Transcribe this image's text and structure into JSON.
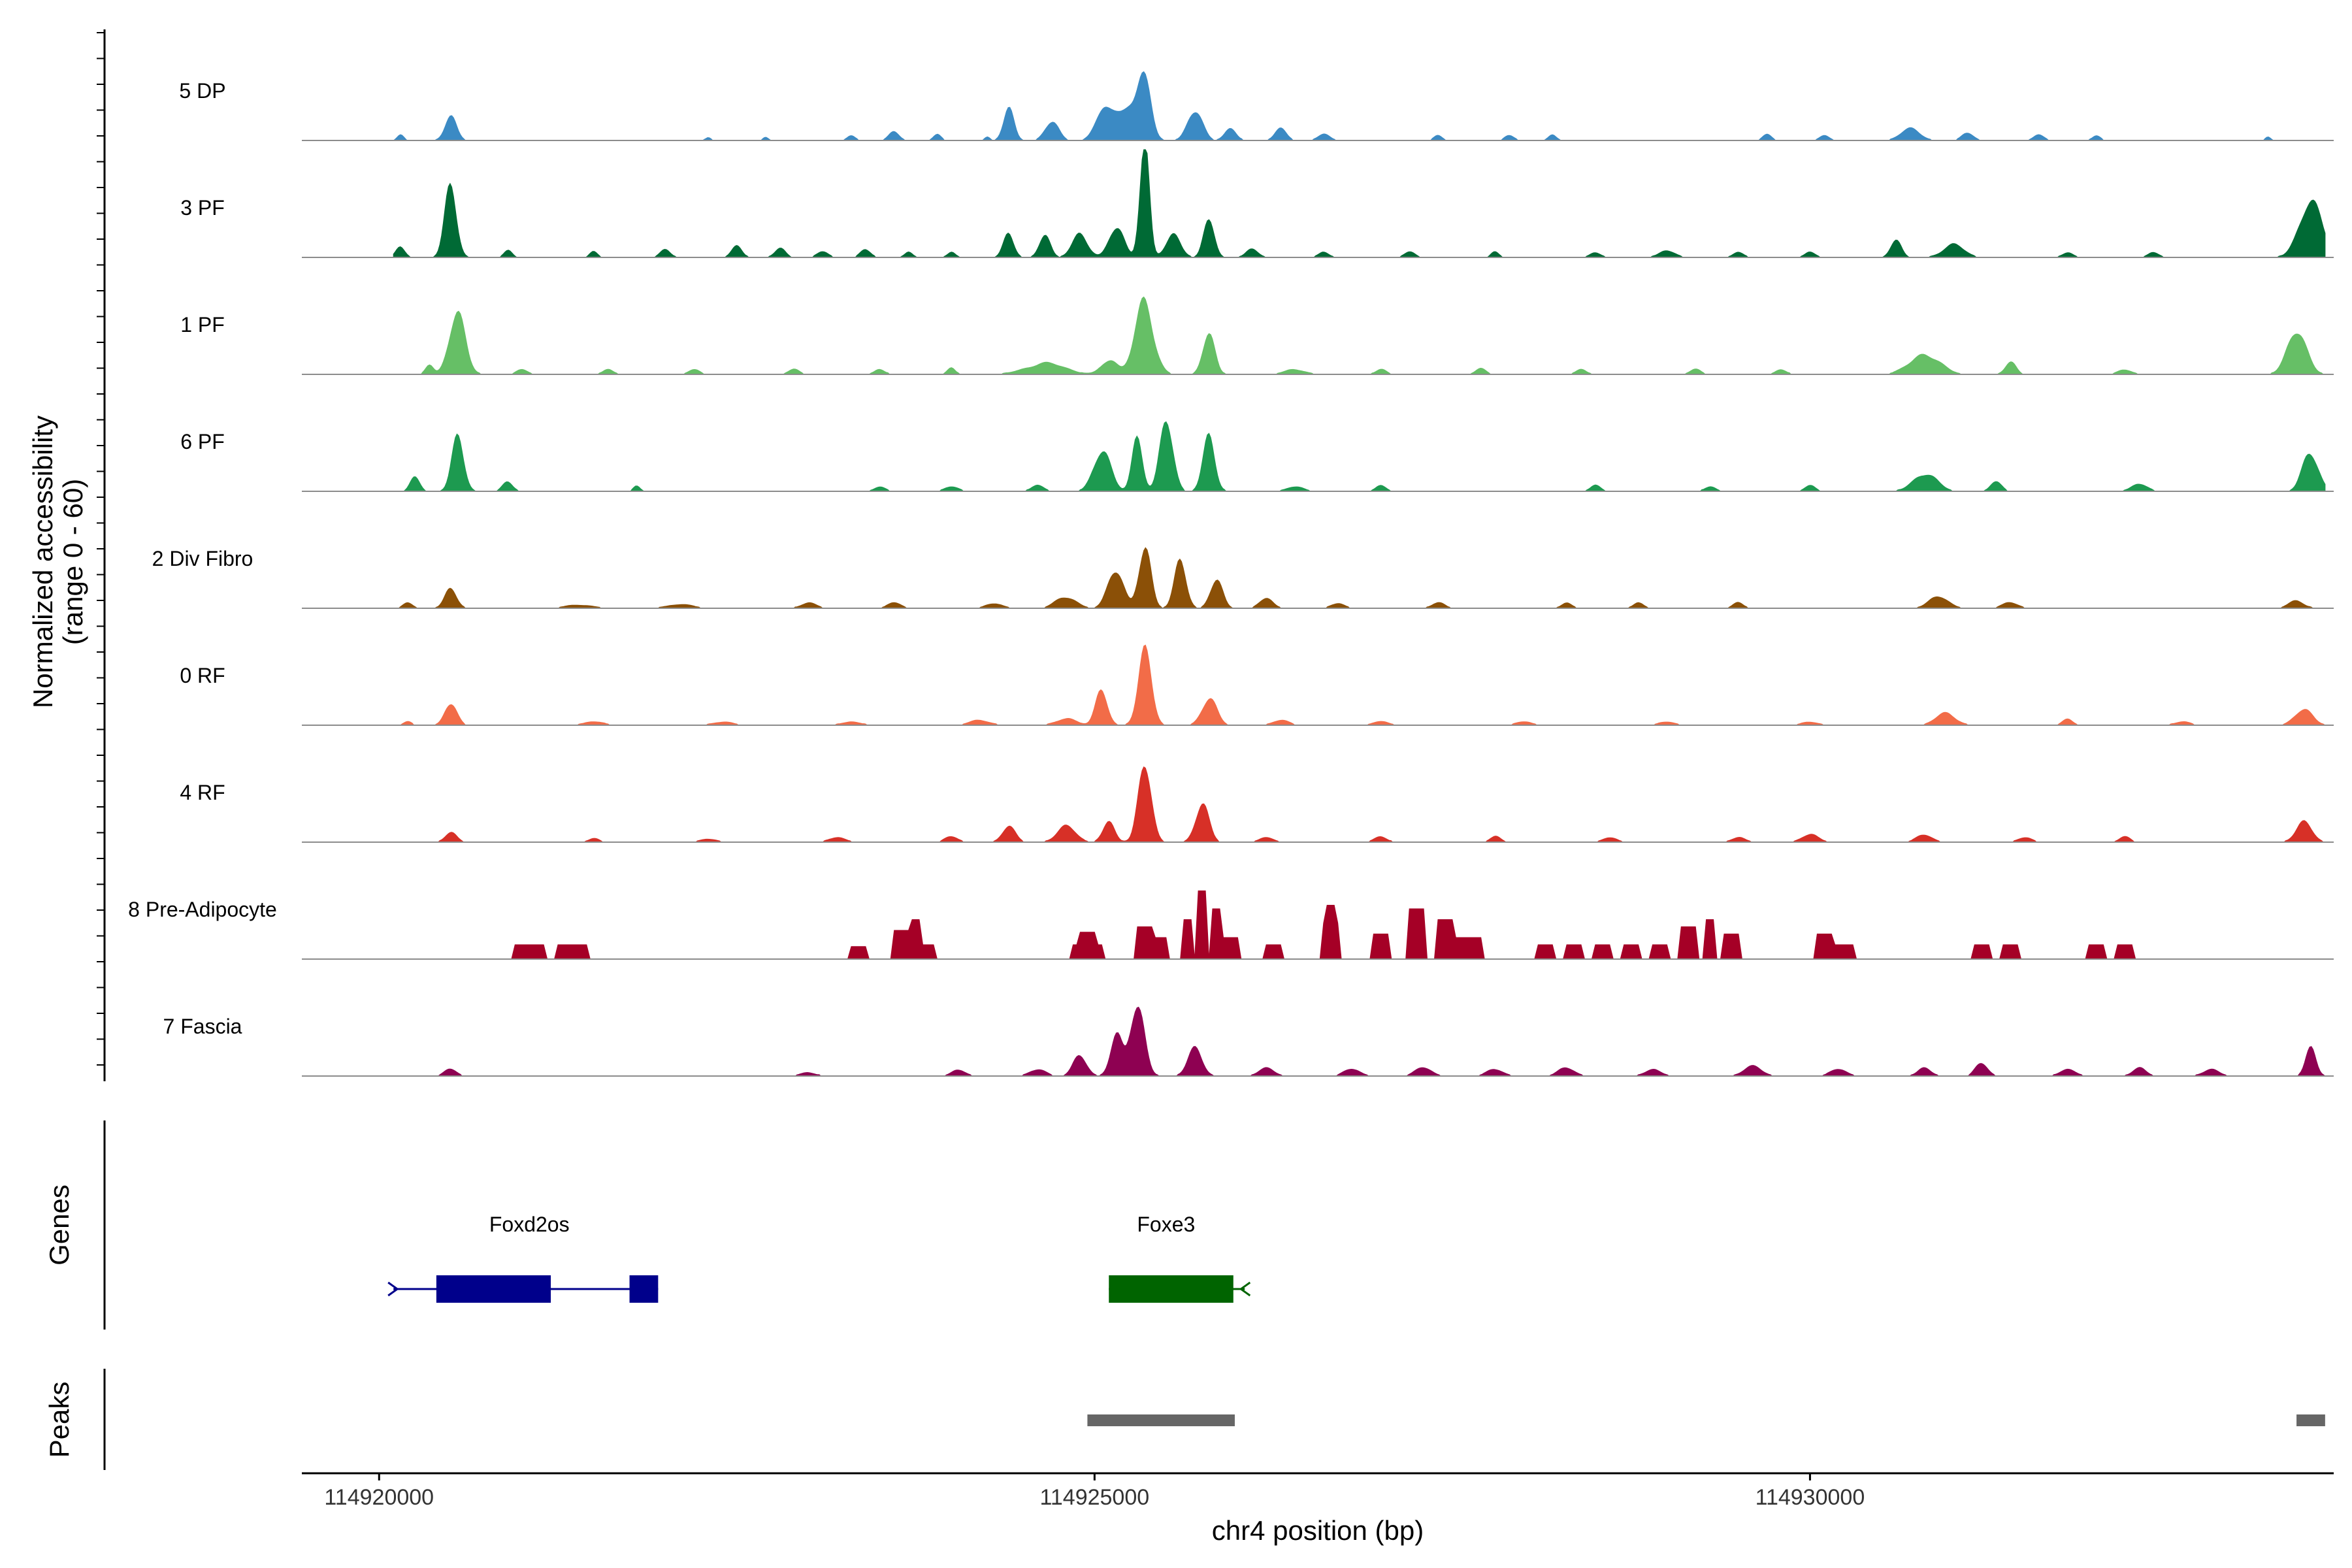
{
  "chart_data": {
    "type": "area",
    "description_axis": "chr4",
    "y_axis_title_line1": "Normalized accessibility",
    "y_axis_title_line2": "(range 0 - 60)",
    "y_range": [
      0,
      60
    ],
    "x_axis_title": "chr4 position (bp)",
    "x_range": [
      114919460,
      114933660
    ],
    "x_ticks": [
      114920000,
      114925000,
      114930000
    ],
    "x_tick_labels": [
      "114920000",
      "114925000",
      "114930000"
    ],
    "track_start": 114920100,
    "track_end": 114933600,
    "tracks": [
      {
        "name": "5 DP",
        "color": "#3b8ac4",
        "shape": "smooth",
        "peaks": [
          [
            114920150,
            3,
            50
          ],
          [
            114920500,
            12,
            90
          ],
          [
            114922300,
            2,
            40
          ],
          [
            114922700,
            2,
            40
          ],
          [
            114923300,
            3,
            60
          ],
          [
            114923600,
            5,
            80
          ],
          [
            114923900,
            3,
            60
          ],
          [
            114924250,
            2,
            40
          ],
          [
            114924400,
            16,
            80
          ],
          [
            114924700,
            12,
            100
          ],
          [
            114925050,
            12,
            100
          ],
          [
            114925350,
            30,
            90
          ],
          [
            114925200,
            20,
            220
          ],
          [
            114925700,
            18,
            110
          ],
          [
            114925950,
            6,
            90
          ],
          [
            114926300,
            6,
            90
          ],
          [
            114926600,
            4,
            90
          ],
          [
            114927400,
            3,
            60
          ],
          [
            114927900,
            3,
            70
          ],
          [
            114928200,
            3,
            60
          ],
          [
            114929700,
            3,
            70
          ],
          [
            114930100,
            3,
            70
          ],
          [
            114930700,
            6,
            150
          ],
          [
            114931100,
            4,
            90
          ],
          [
            114931600,
            3,
            80
          ],
          [
            114932000,
            3,
            60
          ],
          [
            114933200,
            2,
            40
          ]
        ]
      },
      {
        "name": "3 PF",
        "color": "#006a35",
        "shape": "smooth",
        "peaks": [
          [
            114920150,
            6,
            70
          ],
          [
            114920500,
            36,
            90
          ],
          [
            114920900,
            4,
            60
          ],
          [
            114921500,
            3,
            60
          ],
          [
            114922000,
            4,
            80
          ],
          [
            114922500,
            6,
            80
          ],
          [
            114922800,
            5,
            80
          ],
          [
            114923100,
            4,
            80
          ],
          [
            114923400,
            4,
            80
          ],
          [
            114923700,
            3,
            60
          ],
          [
            114924000,
            3,
            60
          ],
          [
            114924400,
            12,
            80
          ],
          [
            114924650,
            14,
            80
          ],
          [
            114924900,
            12,
            120
          ],
          [
            114925150,
            18,
            110
          ],
          [
            114925350,
            60,
            70
          ],
          [
            114925550,
            14,
            110
          ],
          [
            114925800,
            20,
            80
          ],
          [
            114926100,
            5,
            90
          ],
          [
            114926600,
            3,
            80
          ],
          [
            114927200,
            3,
            80
          ],
          [
            114927800,
            3,
            60
          ],
          [
            114928500,
            3,
            80
          ],
          [
            114929000,
            4,
            120
          ],
          [
            114929500,
            3,
            80
          ],
          [
            114930000,
            3,
            80
          ],
          [
            114930600,
            9,
            80
          ],
          [
            114931000,
            7,
            160
          ],
          [
            114931800,
            3,
            80
          ],
          [
            114932400,
            3,
            80
          ],
          [
            114933500,
            28,
            180
          ]
        ]
      },
      {
        "name": "1 PF",
        "color": "#66bf66",
        "shape": "smooth",
        "peaks": [
          [
            114920350,
            5,
            60
          ],
          [
            114920550,
            36,
            120
          ],
          [
            114921000,
            3,
            80
          ],
          [
            114921600,
            3,
            80
          ],
          [
            114922200,
            3,
            80
          ],
          [
            114922900,
            3,
            80
          ],
          [
            114923500,
            3,
            80
          ],
          [
            114924000,
            4,
            60
          ],
          [
            114924650,
            6,
            300
          ],
          [
            114925100,
            8,
            120
          ],
          [
            114925350,
            40,
            140
          ],
          [
            114925800,
            22,
            90
          ],
          [
            114926400,
            3,
            150
          ],
          [
            114927000,
            3,
            80
          ],
          [
            114927700,
            3,
            80
          ],
          [
            114928400,
            3,
            80
          ],
          [
            114929200,
            3,
            80
          ],
          [
            114929800,
            3,
            80
          ],
          [
            114930800,
            12,
            220
          ],
          [
            114931400,
            7,
            80
          ],
          [
            114932200,
            3,
            100
          ],
          [
            114933400,
            22,
            150
          ]
        ]
      },
      {
        "name": "6 PF",
        "color": "#1d9a50",
        "shape": "smooth",
        "peaks": [
          [
            114920250,
            8,
            70
          ],
          [
            114920550,
            34,
            90
          ],
          [
            114920900,
            5,
            80
          ],
          [
            114921800,
            3,
            50
          ],
          [
            114923500,
            3,
            80
          ],
          [
            114924000,
            3,
            100
          ],
          [
            114924600,
            3,
            100
          ],
          [
            114925050,
            22,
            130
          ],
          [
            114925300,
            30,
            80
          ],
          [
            114925500,
            40,
            100
          ],
          [
            114925800,
            32,
            90
          ],
          [
            114926400,
            3,
            120
          ],
          [
            114927000,
            3,
            80
          ],
          [
            114928500,
            3,
            80
          ],
          [
            114929300,
            3,
            80
          ],
          [
            114930000,
            3,
            80
          ],
          [
            114930800,
            10,
            180
          ],
          [
            114931300,
            6,
            80
          ],
          [
            114932300,
            4,
            120
          ],
          [
            114933500,
            22,
            120
          ]
        ]
      },
      {
        "name": "2 Div Fibro",
        "color": "#8b5007",
        "shape": "smooth",
        "peaks": [
          [
            114920200,
            3,
            70
          ],
          [
            114920500,
            12,
            90
          ],
          [
            114921400,
            2,
            200
          ],
          [
            114922100,
            2,
            200
          ],
          [
            114923000,
            3,
            120
          ],
          [
            114923600,
            3,
            100
          ],
          [
            114924300,
            3,
            120
          ],
          [
            114924800,
            7,
            150
          ],
          [
            114925150,
            20,
            120
          ],
          [
            114925350,
            38,
            90
          ],
          [
            114925600,
            24,
            90
          ],
          [
            114925850,
            18,
            90
          ],
          [
            114926200,
            6,
            100
          ],
          [
            114926700,
            3,
            100
          ],
          [
            114927400,
            3,
            100
          ],
          [
            114928300,
            3,
            80
          ],
          [
            114928800,
            3,
            80
          ],
          [
            114929500,
            3,
            80
          ],
          [
            114930900,
            6,
            150
          ],
          [
            114931400,
            3,
            120
          ],
          [
            114933400,
            4,
            120
          ]
        ]
      },
      {
        "name": "0 RF",
        "color": "#f26c48",
        "shape": "smooth",
        "peaks": [
          [
            114920200,
            2,
            60
          ],
          [
            114920500,
            13,
            90
          ],
          [
            114921500,
            2,
            150
          ],
          [
            114922400,
            2,
            150
          ],
          [
            114923300,
            2,
            150
          ],
          [
            114924200,
            3,
            150
          ],
          [
            114924800,
            4,
            150
          ],
          [
            114925050,
            18,
            90
          ],
          [
            114925350,
            42,
            100
          ],
          [
            114925800,
            16,
            110
          ],
          [
            114926300,
            3,
            120
          ],
          [
            114927000,
            2,
            120
          ],
          [
            114928000,
            2,
            120
          ],
          [
            114929000,
            2,
            120
          ],
          [
            114930000,
            2,
            120
          ],
          [
            114930950,
            7,
            150
          ],
          [
            114931800,
            3,
            80
          ],
          [
            114932600,
            2,
            120
          ],
          [
            114933450,
            10,
            130
          ]
        ]
      },
      {
        "name": "4 RF",
        "color": "#d73027",
        "shape": "smooth",
        "peaks": [
          [
            114920500,
            5,
            90
          ],
          [
            114921500,
            2,
            80
          ],
          [
            114922300,
            2,
            120
          ],
          [
            114923200,
            3,
            120
          ],
          [
            114924000,
            3,
            100
          ],
          [
            114924400,
            8,
            100
          ],
          [
            114924800,
            9,
            140
          ],
          [
            114925100,
            12,
            90
          ],
          [
            114925350,
            40,
            100
          ],
          [
            114925750,
            22,
            100
          ],
          [
            114926200,
            3,
            100
          ],
          [
            114927000,
            3,
            100
          ],
          [
            114927800,
            3,
            80
          ],
          [
            114928600,
            3,
            100
          ],
          [
            114929500,
            3,
            100
          ],
          [
            114930000,
            5,
            120
          ],
          [
            114930800,
            4,
            120
          ],
          [
            114931500,
            3,
            100
          ],
          [
            114932200,
            3,
            80
          ],
          [
            114933450,
            12,
            120
          ]
        ]
      },
      {
        "name": "8 Pre-Adipocyte",
        "color": "#a50026",
        "shape": "step",
        "peaks": [
          [
            114921050,
            8,
            100
          ],
          [
            114921350,
            8,
            100
          ],
          [
            114923350,
            7,
            60
          ],
          [
            114923650,
            16,
            60
          ],
          [
            114923750,
            22,
            40
          ],
          [
            114923800,
            8,
            80
          ],
          [
            114924950,
            15,
            60
          ],
          [
            114924950,
            8,
            100
          ],
          [
            114925350,
            18,
            50
          ],
          [
            114925450,
            12,
            50
          ],
          [
            114925650,
            22,
            40
          ],
          [
            114925750,
            38,
            40
          ],
          [
            114925850,
            28,
            40
          ],
          [
            114925950,
            12,
            50
          ],
          [
            114926250,
            8,
            50
          ],
          [
            114926650,
            20,
            60
          ],
          [
            114926650,
            30,
            40
          ],
          [
            114927000,
            14,
            60
          ],
          [
            114927250,
            28,
            50
          ],
          [
            114927450,
            22,
            50
          ],
          [
            114927600,
            12,
            100
          ],
          [
            114928150,
            8,
            50
          ],
          [
            114928350,
            8,
            50
          ],
          [
            114928550,
            8,
            50
          ],
          [
            114928750,
            8,
            50
          ],
          [
            114928950,
            8,
            50
          ],
          [
            114929150,
            18,
            50
          ],
          [
            114929300,
            22,
            40
          ],
          [
            114929450,
            14,
            60
          ],
          [
            114930100,
            14,
            60
          ],
          [
            114930200,
            8,
            120
          ],
          [
            114931200,
            8,
            50
          ],
          [
            114931400,
            8,
            50
          ],
          [
            114932000,
            8,
            70
          ],
          [
            114932200,
            8,
            50
          ]
        ]
      },
      {
        "name": "7 Fascia",
        "color": "#8e0152",
        "shape": "smooth",
        "peaks": [
          [
            114920500,
            4,
            90
          ],
          [
            114923000,
            2,
            120
          ],
          [
            114924050,
            4,
            100
          ],
          [
            114924600,
            4,
            120
          ],
          [
            114924900,
            12,
            100
          ],
          [
            114925150,
            22,
            90
          ],
          [
            114925300,
            36,
            110
          ],
          [
            114925700,
            14,
            110
          ],
          [
            114926200,
            4,
            120
          ],
          [
            114926800,
            4,
            120
          ],
          [
            114927300,
            5,
            120
          ],
          [
            114927800,
            4,
            120
          ],
          [
            114928300,
            5,
            120
          ],
          [
            114928900,
            4,
            120
          ],
          [
            114929600,
            5,
            140
          ],
          [
            114930200,
            4,
            120
          ],
          [
            114930800,
            5,
            100
          ],
          [
            114931200,
            8,
            90
          ],
          [
            114931800,
            4,
            120
          ],
          [
            114932300,
            5,
            100
          ],
          [
            114932800,
            4,
            120
          ],
          [
            114933500,
            14,
            80
          ]
        ]
      }
    ],
    "genes_track_label": "Genes",
    "peaks_track_label": "Peaks",
    "genes": [
      {
        "name": "Foxd2os",
        "color": "#00008b",
        "strand": "+",
        "start": 114920100,
        "end": 114921950,
        "exons": [
          [
            114920400,
            114921200
          ],
          [
            114921750,
            114921950
          ]
        ],
        "label_pos": 114921050
      },
      {
        "name": "Foxe3",
        "color": "#006400",
        "strand": "-",
        "start": 114925100,
        "end": 114926050,
        "exons": [
          [
            114925100,
            114925970
          ]
        ],
        "label_pos": 114925500
      }
    ],
    "peak_regions": [
      [
        114924950,
        114925980
      ],
      [
        114933400,
        114933600
      ]
    ],
    "peak_color": "#666666",
    "x_axis_color": "#000000"
  }
}
